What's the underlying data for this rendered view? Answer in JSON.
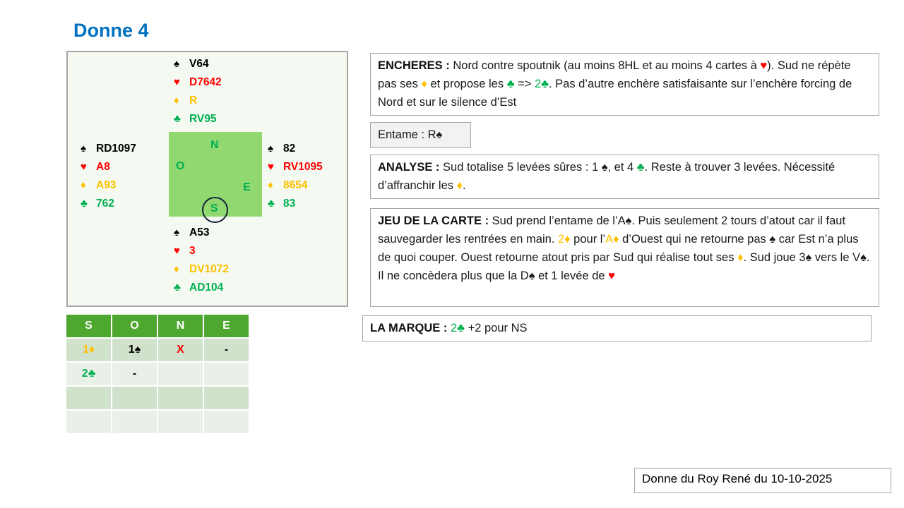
{
  "title": "Donne 4",
  "colors": {
    "spade": "#000000",
    "heart": "#FF0000",
    "diamond": "#FFC000",
    "club": "#00B050",
    "title": "#0070C0"
  },
  "suits": {
    "spade": "♠",
    "heart": "♥",
    "diamond": "♦",
    "club": "♣"
  },
  "deal": {
    "north": {
      "spade": "V64",
      "heart": "D7642",
      "diamond": "R",
      "club": "RV95"
    },
    "west": {
      "spade": "RD1097",
      "heart": "A8",
      "diamond": "A93",
      "club": "762"
    },
    "east": {
      "spade": "82",
      "heart": "RV1095",
      "diamond": "8654",
      "club": "83"
    },
    "south": {
      "spade": "A53",
      "heart": "3",
      "diamond": "DV1072",
      "club": "AD104"
    },
    "compass": {
      "n": "N",
      "o": "O",
      "e": "E",
      "s": "S"
    },
    "declarer": "S"
  },
  "bidding": {
    "headers": [
      "S",
      "O",
      "N",
      "E"
    ],
    "rows": [
      [
        {
          "text": "1♦",
          "color": "diamond"
        },
        {
          "text": "1♠",
          "color": "spade"
        },
        {
          "text": "X",
          "color": "heart"
        },
        {
          "text": "-",
          "color": "spade"
        }
      ],
      [
        {
          "text": "2♣",
          "color": "club"
        },
        {
          "text": "-",
          "color": "spade"
        },
        {
          "text": ""
        },
        {
          "text": ""
        }
      ],
      [
        {
          "text": ""
        },
        {
          "text": ""
        },
        {
          "text": ""
        },
        {
          "text": ""
        }
      ],
      [
        {
          "text": ""
        },
        {
          "text": ""
        },
        {
          "text": ""
        },
        {
          "text": ""
        }
      ]
    ]
  },
  "encheres": {
    "label": "ENCHERES :",
    "segments": [
      {
        "text": " Nord contre spoutnik (au moins 8HL et au moins 4 cartes à "
      },
      {
        "text": "♥",
        "color": "heart"
      },
      {
        "text": "). Sud ne répète pas ses "
      },
      {
        "text": "♦",
        "color": "diamond"
      },
      {
        "text": " et propose les "
      },
      {
        "text": "♣",
        "color": "club"
      },
      {
        "text": " => "
      },
      {
        "text": "2♣",
        "color": "club"
      },
      {
        "text": ". Pas d’autre enchère satisfaisante sur l’enchère forcing de Nord et sur le silence d’Est"
      }
    ]
  },
  "entame": {
    "label": "",
    "segments": [
      {
        "text": "Entame : R♠"
      }
    ]
  },
  "analyse": {
    "label": "ANALYSE :",
    "segments": [
      {
        "text": " Sud totalise 5 levées sûres : 1 ♠, et 4 "
      },
      {
        "text": "♣",
        "color": "club"
      },
      {
        "text": ". Reste à trouver 3 levées. Nécessité d’affranchir les "
      },
      {
        "text": "♦",
        "color": "diamond"
      },
      {
        "text": "."
      }
    ]
  },
  "jeu": {
    "label": "JEU DE LA CARTE :",
    "segments": [
      {
        "text": " Sud prend l’entame de l’A♠. Puis seulement 2 tours d’atout car il faut sauvegarder les rentrées en main. "
      },
      {
        "text": "2♦",
        "color": "diamond"
      },
      {
        "text": " pour l’"
      },
      {
        "text": "A♦",
        "color": "diamond"
      },
      {
        "text": " d’Ouest qui ne retourne pas ♠ car Est n’a plus de quoi couper. Ouest retourne atout pris par Sud qui réalise tout ses "
      },
      {
        "text": "♦",
        "color": "diamond"
      },
      {
        "text": ". Sud joue 3♠ vers le V♠. Il ne concèdera plus que la D♠ et 1 levée de "
      },
      {
        "text": "♥",
        "color": "heart"
      }
    ]
  },
  "marque": {
    "label": "LA MARQUE :",
    "segments": [
      {
        "text": " "
      },
      {
        "text": "2♣",
        "color": "club"
      },
      {
        "text": " +2 pour NS"
      }
    ]
  },
  "footer": "Donne du Roy René du 10-10-2025"
}
